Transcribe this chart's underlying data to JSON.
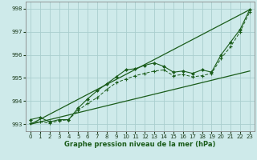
{
  "xlabel": "Graphe pression niveau de la mer (hPa)",
  "xlim": [
    -0.5,
    23.5
  ],
  "ylim": [
    992.7,
    998.3
  ],
  "yticks": [
    993,
    994,
    995,
    996,
    997,
    998
  ],
  "xticks": [
    0,
    1,
    2,
    3,
    4,
    5,
    6,
    7,
    8,
    9,
    10,
    11,
    12,
    13,
    14,
    15,
    16,
    17,
    18,
    19,
    20,
    21,
    22,
    23
  ],
  "bg_color": "#ceeaea",
  "grid_color": "#aacece",
  "line_color": "#1a5c1a",
  "series_main": {
    "x": [
      0,
      1,
      2,
      3,
      4,
      5,
      6,
      7,
      8,
      9,
      10,
      11,
      12,
      13,
      14,
      15,
      16,
      17,
      18,
      19,
      20,
      21,
      22,
      23
    ],
    "y": [
      993.2,
      993.3,
      993.1,
      993.2,
      993.2,
      993.7,
      994.1,
      994.45,
      994.75,
      995.05,
      995.35,
      995.4,
      995.55,
      995.65,
      995.5,
      995.25,
      995.3,
      995.2,
      995.35,
      995.25,
      996.0,
      996.55,
      997.1,
      997.95
    ]
  },
  "series_secondary": {
    "x": [
      0,
      1,
      2,
      3,
      4,
      5,
      6,
      7,
      8,
      9,
      10,
      11,
      12,
      13,
      14,
      15,
      16,
      17,
      18,
      19,
      20,
      21,
      22,
      23
    ],
    "y": [
      993.05,
      993.1,
      993.05,
      993.15,
      993.2,
      993.6,
      993.9,
      994.15,
      994.5,
      994.8,
      994.95,
      995.1,
      995.2,
      995.3,
      995.35,
      995.1,
      995.15,
      995.05,
      995.1,
      995.2,
      995.85,
      996.35,
      997.0,
      997.85
    ]
  },
  "envelope_upper": {
    "x": [
      0,
      23
    ],
    "y": [
      993.0,
      997.95
    ]
  },
  "envelope_lower": {
    "x": [
      0,
      23
    ],
    "y": [
      993.0,
      995.3
    ]
  }
}
